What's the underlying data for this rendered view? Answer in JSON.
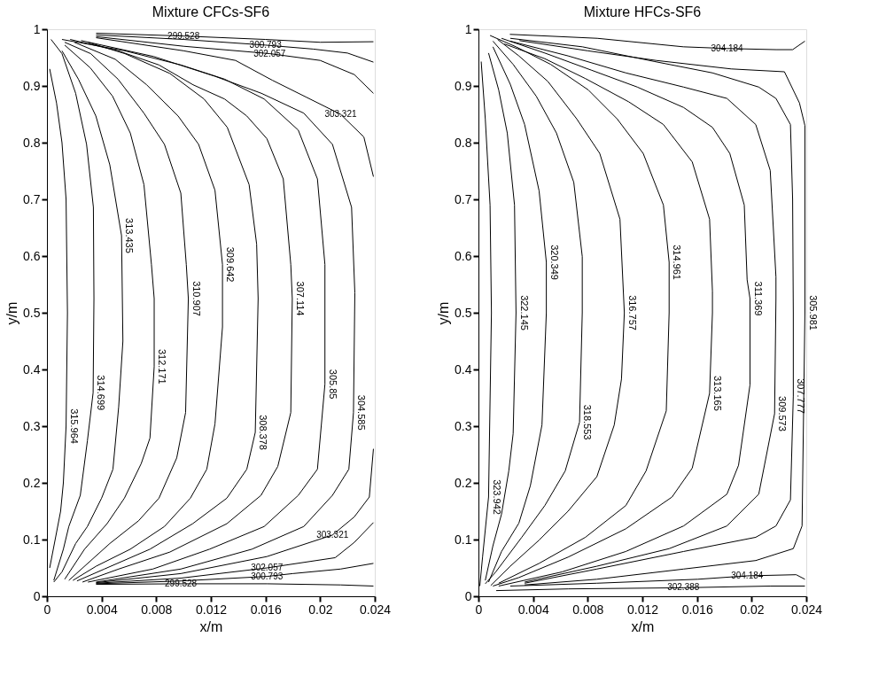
{
  "chart_data": [
    {
      "type": "line",
      "title": "Mixture CFCs-SF6",
      "xlabel": "x/m",
      "ylabel": "y/m",
      "xlim": [
        0,
        0.024
      ],
      "ylim": [
        0,
        1
      ],
      "xticks": [
        0,
        0.004,
        0.008,
        0.012,
        0.016,
        0.02,
        0.024
      ],
      "yticks": [
        0,
        0.1,
        0.2,
        0.3,
        0.4,
        0.5,
        0.6,
        0.7,
        0.8,
        0.9,
        1
      ],
      "grid": false,
      "legend": false,
      "series": [
        {
          "name": "315.964",
          "color": "#000000",
          "x": [
            0.0002,
            0.0006,
            0.001,
            0.0012,
            0.0014,
            0.0015,
            0.0014,
            0.0011,
            0.0007,
            0.0002
          ],
          "values": [
            0.05,
            0.1,
            0.15,
            0.2,
            0.3,
            0.5,
            0.7,
            0.8,
            0.87,
            0.93
          ]
        },
        {
          "name": "314.699",
          "color": "#000000",
          "x": [
            0.0005,
            0.0012,
            0.0016,
            0.00244,
            0.00296,
            0.00338,
            0.00344,
            0.0034,
            0.0029,
            0.0021,
            0.0011,
            0.0003
          ],
          "values": [
            0.028,
            0.083,
            0.123,
            0.178,
            0.274,
            0.359,
            0.525,
            0.686,
            0.797,
            0.887,
            0.957,
            0.982
          ]
        },
        {
          "name": "313.435",
          "color": "#000000",
          "x": [
            0.0005,
            0.0011,
            0.0021,
            0.00296,
            0.004,
            0.00483,
            0.00525,
            0.00556,
            0.00546,
            0.0046,
            0.00358,
            0.0023,
            0.0011
          ],
          "values": [
            0.025,
            0.043,
            0.093,
            0.123,
            0.173,
            0.224,
            0.334,
            0.45,
            0.636,
            0.761,
            0.847,
            0.912,
            0.962
          ]
        },
        {
          "name": "312.171",
          "color": "#000000",
          "x": [
            0.0013,
            0.00275,
            0.0044,
            0.00567,
            0.0069,
            0.00754,
            0.00785,
            0.00785,
            0.00765,
            0.0071,
            0.0061,
            0.0048,
            0.00317,
            0.0013
          ],
          "values": [
            0.03,
            0.083,
            0.128,
            0.173,
            0.234,
            0.279,
            0.405,
            0.525,
            0.585,
            0.726,
            0.817,
            0.882,
            0.932,
            0.972
          ]
        },
        {
          "name": "310.907",
          "color": "#000000",
          "x": [
            0.0016,
            0.0046,
            0.0067,
            0.0082,
            0.0095,
            0.01015,
            0.01035,
            0.0102,
            0.0098,
            0.0086,
            0.0071,
            0.0052,
            0.0032,
            0.0013
          ],
          "values": [
            0.028,
            0.093,
            0.133,
            0.173,
            0.244,
            0.324,
            0.525,
            0.585,
            0.711,
            0.797,
            0.852,
            0.912,
            0.957,
            0.977
          ]
        },
        {
          "name": "309.642",
          "color": "#000000",
          "x": [
            0.0019,
            0.0036,
            0.0061,
            0.0086,
            0.0105,
            0.0117,
            0.0123,
            0.01285,
            0.01285,
            0.0123,
            0.0111,
            0.0096,
            0.0073,
            0.005,
            0.002
          ],
          "values": [
            0.028,
            0.053,
            0.083,
            0.123,
            0.173,
            0.224,
            0.304,
            0.475,
            0.585,
            0.716,
            0.797,
            0.847,
            0.902,
            0.947,
            0.977
          ]
        },
        {
          "name": "308.378",
          "color": "#000000",
          "x": [
            0.0022,
            0.0042,
            0.00754,
            0.01067,
            0.01317,
            0.01463,
            0.01525,
            0.01546,
            0.01535,
            0.0148,
            0.0132,
            0.0115,
            0.009,
            0.0057,
            0.003
          ],
          "values": [
            0.027,
            0.048,
            0.083,
            0.128,
            0.173,
            0.224,
            0.289,
            0.525,
            0.621,
            0.726,
            0.827,
            0.877,
            0.922,
            0.957,
            0.977
          ]
        },
        {
          "name": "307.114",
          "color": "#000000",
          "x": [
            0.0026,
            0.00525,
            0.009,
            0.01317,
            0.01567,
            0.0169,
            0.01785,
            0.01796,
            0.01785,
            0.0173,
            0.0161,
            0.01463,
            0.013,
            0.0107,
            0.0082,
            0.0052,
            0.0017
          ],
          "values": [
            0.025,
            0.048,
            0.078,
            0.128,
            0.178,
            0.229,
            0.324,
            0.525,
            0.585,
            0.736,
            0.807,
            0.847,
            0.877,
            0.902,
            0.937,
            0.962,
            0.982
          ]
        },
        {
          "name": "305.85",
          "color": "#000000",
          "x": [
            0.003,
            0.00775,
            0.0119,
            0.0159,
            0.0184,
            0.0198,
            0.02035,
            0.02035,
            0.02035,
            0.0198,
            0.0184,
            0.0159,
            0.013,
            0.0098,
            0.0057,
            0.0011
          ],
          "values": [
            0.025,
            0.048,
            0.083,
            0.123,
            0.178,
            0.224,
            0.374,
            0.525,
            0.585,
            0.736,
            0.822,
            0.877,
            0.912,
            0.937,
            0.962,
            0.982
          ]
        },
        {
          "name": "304.585",
          "color": "#000000",
          "x": [
            0.0036,
            0.0098,
            0.015,
            0.0188,
            0.0209,
            0.0221,
            0.02244,
            0.02254,
            0.0223,
            0.0209,
            0.0188,
            0.0157,
            0.0123,
            0.0078,
            0.0025
          ],
          "values": [
            0.025,
            0.048,
            0.083,
            0.123,
            0.178,
            0.224,
            0.324,
            0.535,
            0.686,
            0.797,
            0.852,
            0.887,
            0.917,
            0.952,
            0.98
          ]
        },
        {
          "name": "303.321",
          "color": "#000000",
          "x": [
            0.0036,
            0.0098,
            0.0161,
            0.0209,
            0.0225,
            0.0236,
            0.0239
          ],
          "values": [
            0.024,
            0.04,
            0.07,
            0.108,
            0.14,
            0.175,
            0.26
          ]
        },
        {
          "name": "302.057",
          "color": "#000000",
          "x": [
            0.0036,
            0.0098,
            0.0161,
            0.0211,
            0.0225,
            0.0239
          ],
          "values": [
            0.023,
            0.032,
            0.05,
            0.068,
            0.095,
            0.13
          ]
        },
        {
          "name": "300.793",
          "color": "#000000",
          "x": [
            0.0036,
            0.0098,
            0.0161,
            0.018,
            0.0215,
            0.0239
          ],
          "values": [
            0.022,
            0.027,
            0.035,
            0.04,
            0.048,
            0.058
          ]
        },
        {
          "name": "299.528",
          "color": "#000000",
          "x": [
            0.0036,
            0.0098,
            0.0161,
            0.0215,
            0.0239
          ],
          "values": [
            0.021,
            0.022,
            0.022,
            0.02,
            0.018
          ]
        },
        {
          "name": "303.321",
          "color": "#000000",
          "x": [
            0.0239,
            0.0232,
            0.0215,
            0.019,
            0.0165,
            0.0138,
            0.01,
            0.0036
          ],
          "values": [
            0.74,
            0.81,
            0.85,
            0.88,
            0.91,
            0.945,
            0.962,
            0.985
          ]
        },
        {
          "name": "302.057",
          "color": "#000000",
          "x": [
            0.0239,
            0.0225,
            0.02,
            0.0163,
            0.01,
            0.0036
          ],
          "values": [
            0.887,
            0.92,
            0.945,
            0.957,
            0.97,
            0.987
          ]
        },
        {
          "name": "300.793",
          "color": "#000000",
          "x": [
            0.0239,
            0.022,
            0.0195,
            0.016,
            0.01,
            0.0036
          ],
          "values": [
            0.942,
            0.958,
            0.965,
            0.972,
            0.982,
            0.99
          ]
        },
        {
          "name": "299.528",
          "color": "#000000",
          "x": [
            0.0239,
            0.02,
            0.016,
            0.01,
            0.0036
          ],
          "values": [
            0.978,
            0.977,
            0.982,
            0.988,
            0.993
          ]
        }
      ]
    },
    {
      "type": "line",
      "title": "Mixture HFCs-SF6",
      "xlabel": "x/m",
      "ylabel": "y/m",
      "xlim": [
        0,
        0.024
      ],
      "ylim": [
        0,
        1
      ],
      "xticks": [
        0,
        0.004,
        0.008,
        0.012,
        0.016,
        0.02,
        0.024
      ],
      "yticks": [
        0,
        0.1,
        0.2,
        0.3,
        0.4,
        0.5,
        0.6,
        0.7,
        0.8,
        0.9,
        1
      ],
      "grid": false,
      "legend": false,
      "series": [
        {
          "name": "323.942",
          "color": "#000000",
          "x": [
            0.0001,
            0.0003,
            0.00074,
            0.00095,
            0.00085,
            0.0005,
            0.0002
          ],
          "values": [
            0.018,
            0.069,
            0.175,
            0.5,
            0.69,
            0.842,
            0.943
          ]
        },
        {
          "name": "322.145",
          "color": "#000000",
          "x": [
            0.0005,
            0.00106,
            0.00169,
            0.00222,
            0.00254,
            0.00275,
            0.00264,
            0.00211,
            0.00148,
            0.00074
          ],
          "values": [
            0.028,
            0.089,
            0.145,
            0.221,
            0.287,
            0.5,
            0.69,
            0.817,
            0.893,
            0.958
          ]
        },
        {
          "name": "320.349",
          "color": "#000000",
          "x": [
            0.00074,
            0.00169,
            0.00296,
            0.0038,
            0.00465,
            0.00497,
            0.00497,
            0.00444,
            0.00338,
            0.00233,
            0.00106
          ],
          "values": [
            0.025,
            0.079,
            0.129,
            0.195,
            0.302,
            0.5,
            0.589,
            0.715,
            0.832,
            0.903,
            0.969
          ]
        },
        {
          "name": "318.553",
          "color": "#000000",
          "x": [
            0.0005,
            0.00127,
            0.00317,
            0.00486,
            0.00635,
            0.0074,
            0.0076,
            0.0076,
            0.00698,
            0.00571,
            0.00423,
            0.00254,
            0.00106
          ],
          "values": [
            0.022,
            0.043,
            0.104,
            0.16,
            0.221,
            0.307,
            0.5,
            0.599,
            0.73,
            0.817,
            0.882,
            0.938,
            0.979
          ]
        },
        {
          "name": "316.757",
          "color": "#000000",
          "x": [
            0.0009,
            0.00233,
            0.00444,
            0.00656,
            0.00867,
            0.00994,
            0.01047,
            0.01068,
            0.01036,
            0.00888,
            0.00719,
            0.00508,
            0.00296,
            0.0014
          ],
          "values": [
            0.019,
            0.053,
            0.099,
            0.15,
            0.211,
            0.302,
            0.383,
            0.5,
            0.665,
            0.781,
            0.842,
            0.908,
            0.953,
            0.982
          ]
        },
        {
          "name": "314.961",
          "color": "#000000",
          "x": [
            0.00148,
            0.00444,
            0.00783,
            0.01079,
            0.01227,
            0.01375,
            0.01396,
            0.01396,
            0.01354,
            0.01206,
            0.01015,
            0.00804,
            0.00529,
            0.00275,
            0.00085
          ],
          "values": [
            0.023,
            0.058,
            0.104,
            0.16,
            0.221,
            0.327,
            0.5,
            0.589,
            0.69,
            0.781,
            0.842,
            0.893,
            0.938,
            0.969,
            0.989
          ]
        },
        {
          "name": "313.165",
          "color": "#000000",
          "x": [
            0.00106,
            0.00296,
            0.00656,
            0.01079,
            0.01417,
            0.01565,
            0.01692,
            0.01713,
            0.01713,
            0.01692,
            0.01565,
            0.01354,
            0.011,
            0.00783,
            0.00486,
            0.0019
          ],
          "values": [
            0.018,
            0.033,
            0.069,
            0.119,
            0.175,
            0.226,
            0.358,
            0.5,
            0.538,
            0.665,
            0.766,
            0.832,
            0.872,
            0.913,
            0.948,
            0.974
          ]
        },
        {
          "name": "311.369",
          "color": "#000000",
          "x": [
            0.00148,
            0.00613,
            0.01079,
            0.01502,
            0.01819,
            0.01904,
            0.01988,
            0.01988,
            0.01967,
            0.01946,
            0.0184,
            0.01713,
            0.01502,
            0.01163,
            0.00825,
            0.00486,
            0.00169
          ],
          "values": [
            0.018,
            0.043,
            0.079,
            0.124,
            0.18,
            0.231,
            0.373,
            0.525,
            0.558,
            0.69,
            0.781,
            0.827,
            0.862,
            0.898,
            0.928,
            0.958,
            0.984
          ]
        },
        {
          "name": "309.573",
          "color": "#000000",
          "x": [
            0.00338,
            0.00867,
            0.01396,
            0.01819,
            0.02052,
            0.02168,
            0.02178,
            0.02178,
            0.02136,
            0.0203,
            0.01819,
            0.01502,
            0.01079,
            0.00656,
            0.00233
          ],
          "values": [
            0.025,
            0.053,
            0.084,
            0.124,
            0.18,
            0.322,
            0.525,
            0.563,
            0.751,
            0.832,
            0.878,
            0.898,
            0.923,
            0.953,
            0.979
          ]
        },
        {
          "name": "307.777",
          "color": "#000000",
          "x": [
            0.00338,
            0.00867,
            0.01502,
            0.0203,
            0.02178,
            0.02284,
            0.02305,
            0.02305,
            0.023,
            0.02284,
            0.02178,
            0.02052,
            0.01713,
            0.0129,
            0.00761,
            0.00233
          ],
          "values": [
            0.023,
            0.048,
            0.079,
            0.104,
            0.124,
            0.17,
            0.353,
            0.5,
            0.7,
            0.832,
            0.878,
            0.898,
            0.923,
            0.943,
            0.969,
            0.984
          ]
        },
        {
          "name": "305.981",
          "color": "#000000",
          "x": [
            0.00338,
            0.00867,
            0.01502,
            0.0203,
            0.02305,
            0.02369,
            0.0239,
            0.0239,
            0.0235,
            0.0224,
            0.0185,
            0.013,
            0.008,
            0.003
          ],
          "values": [
            0.02,
            0.03,
            0.048,
            0.063,
            0.084,
            0.124,
            0.5,
            0.83,
            0.87,
            0.925,
            0.93,
            0.945,
            0.962,
            0.98
          ]
        },
        {
          "name": "304.184",
          "color": "#000000",
          "x": [
            0.00233,
            0.00867,
            0.01607,
            0.01967,
            0.02326,
            0.0239
          ],
          "values": [
            0.018,
            0.023,
            0.03,
            0.036,
            0.038,
            0.03
          ]
        },
        {
          "name": "304.184",
          "color": "#000000",
          "x": [
            0.0239,
            0.023,
            0.0218,
            0.0182,
            0.015,
            0.0087,
            0.0023
          ],
          "values": [
            0.979,
            0.964,
            0.964,
            0.966,
            0.969,
            0.984,
            0.991
          ]
        },
        {
          "name": "302.388",
          "color": "#000000",
          "x": [
            0.0013,
            0.0066,
            0.015,
            0.0214,
            0.0239
          ],
          "values": [
            0.01,
            0.013,
            0.015,
            0.018,
            0.018
          ]
        }
      ]
    }
  ]
}
